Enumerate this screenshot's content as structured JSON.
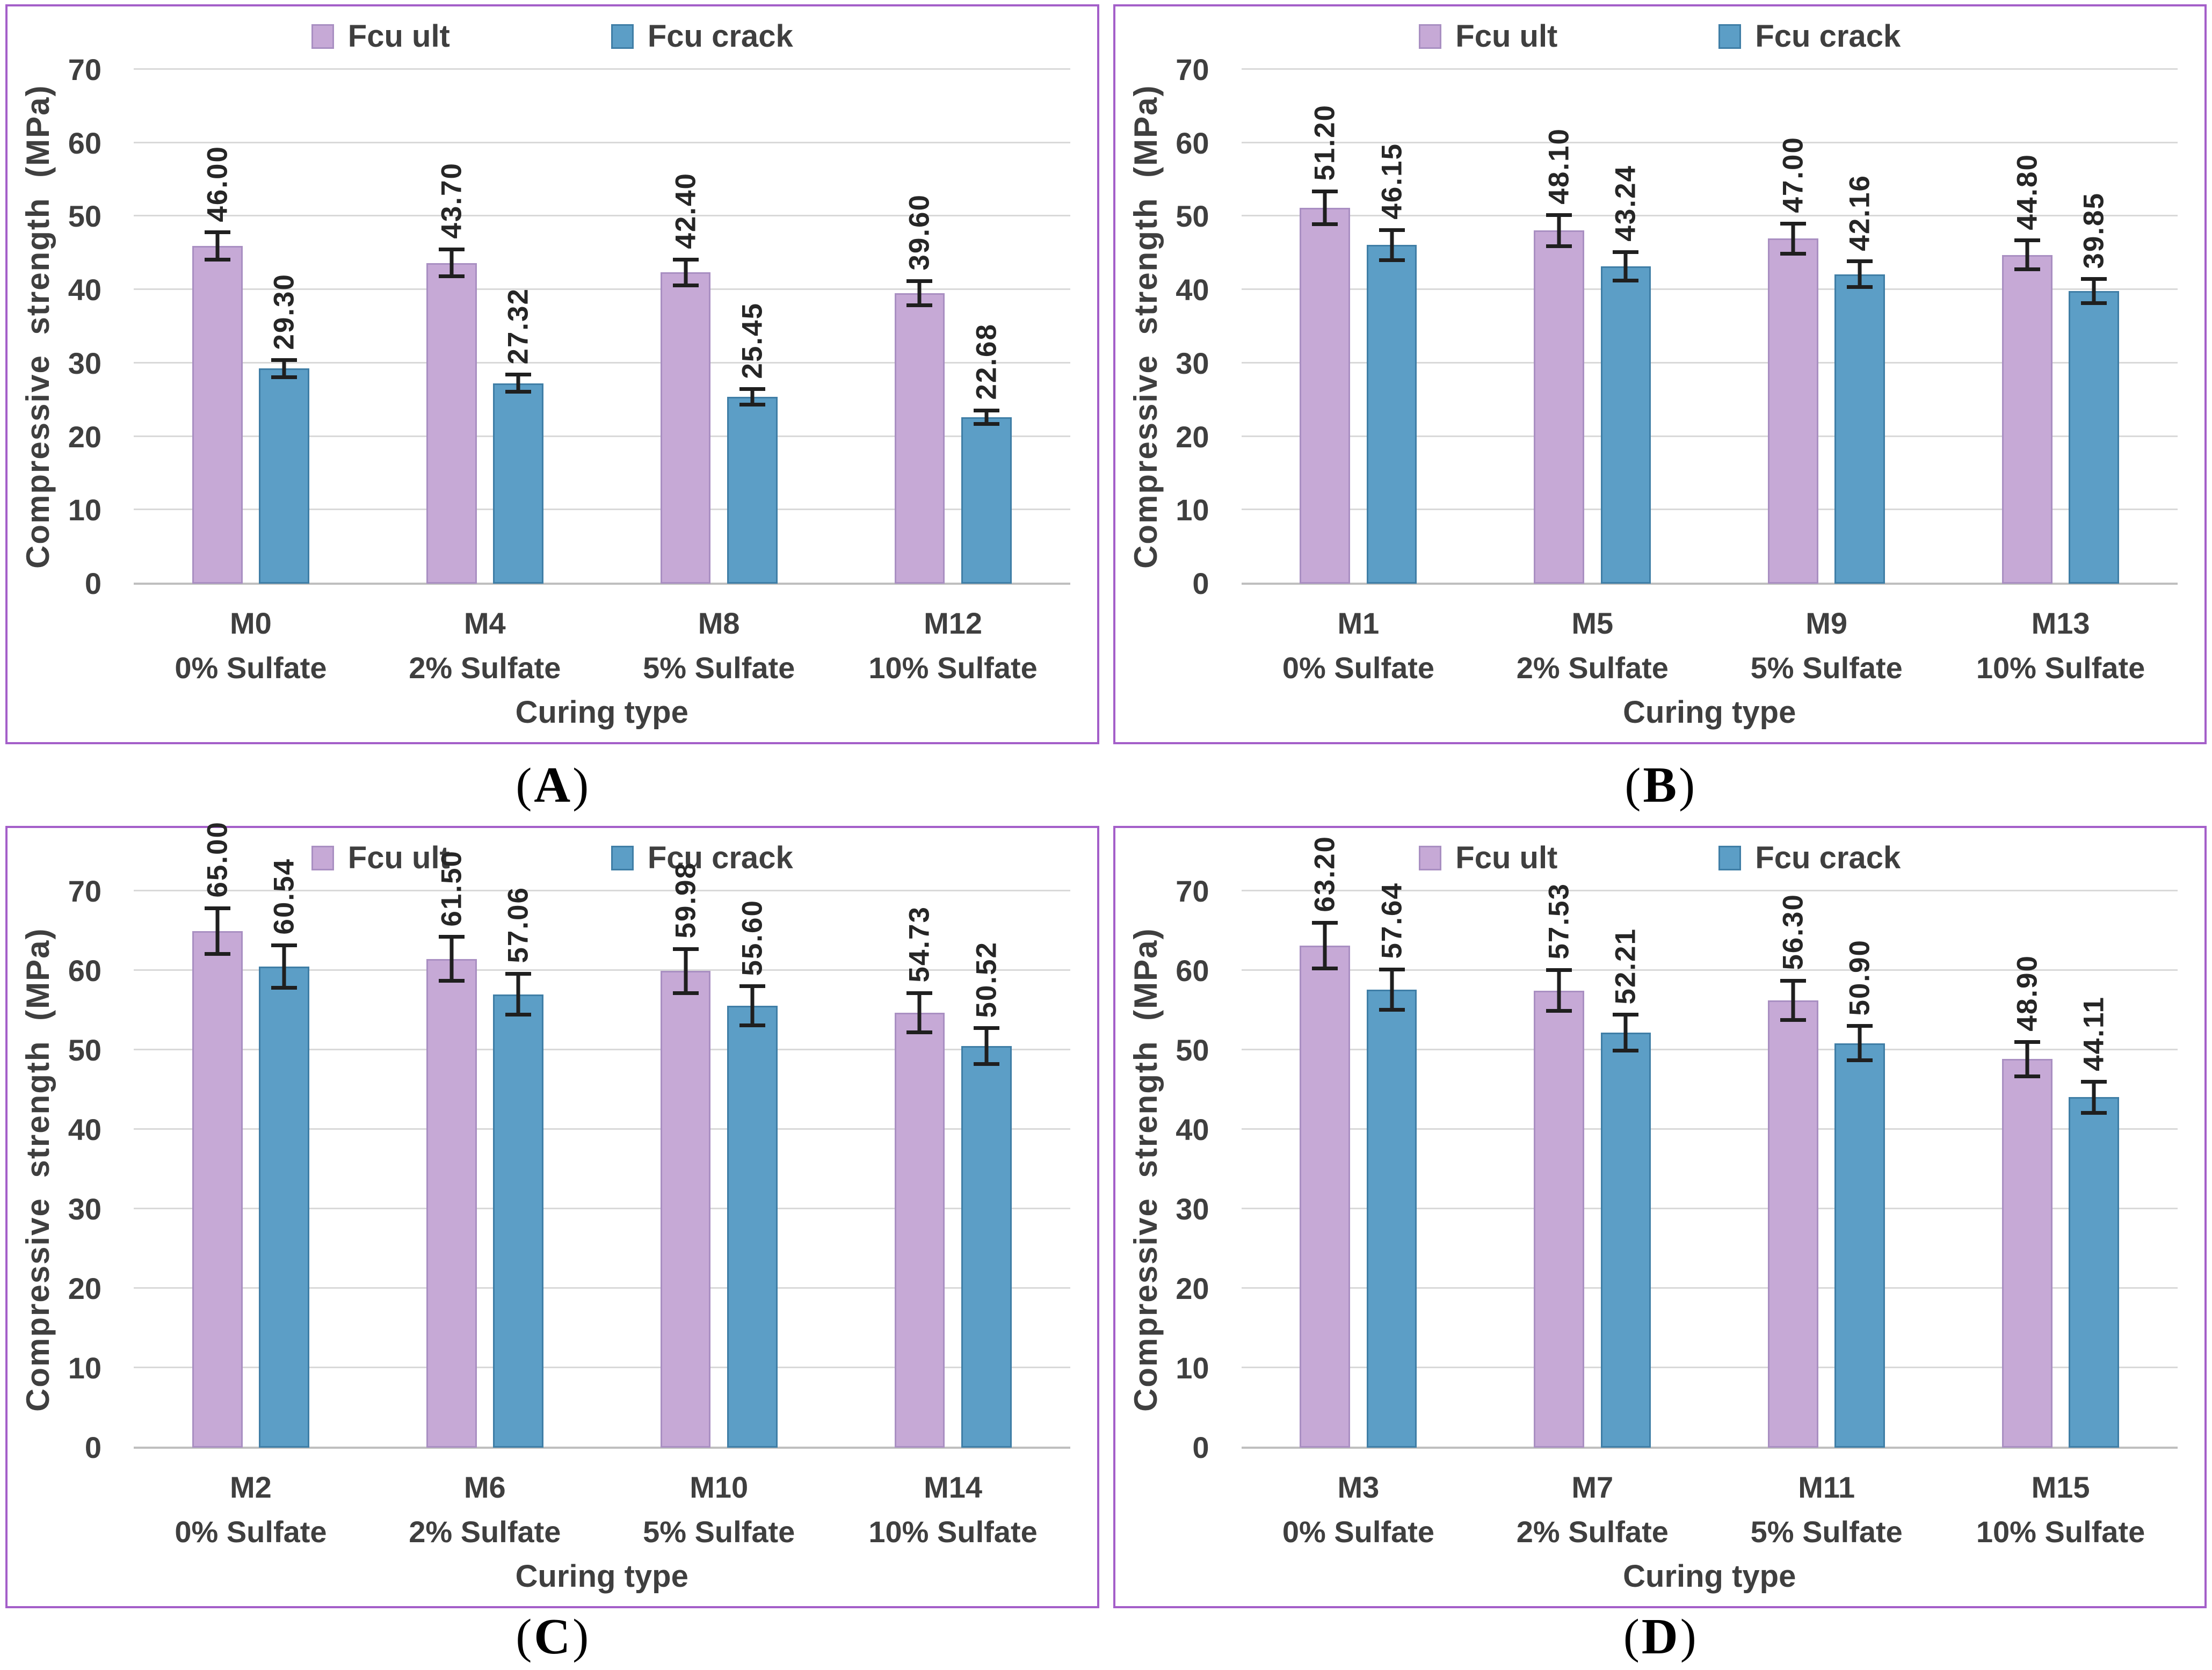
{
  "style": {
    "panel_border": "#a45fc9",
    "gridline": "#d9d9d9",
    "axis_line": "#bfbfbf",
    "text": "#3f3f3f",
    "data_label": "#262626",
    "error_bar": "#1f1f1f",
    "background": "#ffffff"
  },
  "captions": [
    {
      "open": "(",
      "letter": "A",
      "close": ")"
    },
    {
      "open": "(",
      "letter": "B",
      "close": ")"
    },
    {
      "open": "(",
      "letter": "C",
      "close": ")"
    },
    {
      "open": "(",
      "letter": "D",
      "close": ")"
    }
  ],
  "chart_data": [
    {
      "type": "bar",
      "panel": "A",
      "title": "",
      "xlabel": "Curing type",
      "ylabel": "Compressive strength (MPa)",
      "ylim": [
        0,
        70
      ],
      "ytick_step": 10,
      "grid": true,
      "legend_position": "top",
      "value_label_decimals": 2,
      "value_labels_rotated": true,
      "categories": [
        "M0",
        "M4",
        "M8",
        "M12"
      ],
      "category_sublabels": [
        "0% Sulfate",
        "2% Sulfate",
        "5% Sulfate",
        "10% Sulfate"
      ],
      "series": [
        {
          "name": "Fcu ult",
          "fill": "#c6a9d6",
          "stroke": "#a98fc2",
          "values": [
            46.0,
            43.7,
            42.4,
            39.6
          ],
          "errors": [
            2.1,
            2.1,
            2.0,
            1.9
          ]
        },
        {
          "name": "Fcu crack",
          "fill": "#5c9ec6",
          "stroke": "#3f7ea6",
          "values": [
            29.3,
            27.32,
            25.45,
            22.68
          ],
          "errors": [
            1.4,
            1.4,
            1.3,
            1.2
          ]
        }
      ]
    },
    {
      "type": "bar",
      "panel": "B",
      "title": "",
      "xlabel": "Curing type",
      "ylabel": "Compressive strength (MPa)",
      "ylim": [
        0,
        70
      ],
      "ytick_step": 10,
      "grid": true,
      "legend_position": "top",
      "value_label_decimals": 2,
      "value_labels_rotated": true,
      "categories": [
        "M1",
        "M5",
        "M9",
        "M13"
      ],
      "category_sublabels": [
        "0% Sulfate",
        "2% Sulfate",
        "5% Sulfate",
        "10% Sulfate"
      ],
      "series": [
        {
          "name": "Fcu ult",
          "fill": "#c6a9d6",
          "stroke": "#a98fc2",
          "values": [
            51.2,
            48.1,
            47.0,
            44.8
          ],
          "errors": [
            2.5,
            2.4,
            2.3,
            2.2
          ]
        },
        {
          "name": "Fcu crack",
          "fill": "#5c9ec6",
          "stroke": "#3f7ea6",
          "values": [
            46.15,
            43.24,
            42.16,
            39.85
          ],
          "errors": [
            2.3,
            2.2,
            2.0,
            1.9
          ]
        }
      ]
    },
    {
      "type": "bar",
      "panel": "C",
      "title": "",
      "xlabel": "Curing type",
      "ylabel": "Compressive strength (MPa)",
      "ylim": [
        0,
        70
      ],
      "ytick_step": 10,
      "grid": true,
      "legend_position": "top",
      "value_label_decimals": 2,
      "value_labels_rotated": true,
      "categories": [
        "M2",
        "M6",
        "M10",
        "M14"
      ],
      "category_sublabels": [
        "0% Sulfate",
        "2% Sulfate",
        "5% Sulfate",
        "10% Sulfate"
      ],
      "series": [
        {
          "name": "Fcu ult",
          "fill": "#c6a9d6",
          "stroke": "#a98fc2",
          "values": [
            65.0,
            61.5,
            59.98,
            54.73
          ],
          "errors": [
            3.1,
            3.0,
            3.0,
            2.7
          ]
        },
        {
          "name": "Fcu crack",
          "fill": "#5c9ec6",
          "stroke": "#3f7ea6",
          "values": [
            60.54,
            57.06,
            55.6,
            50.52
          ],
          "errors": [
            2.9,
            2.8,
            2.7,
            2.5
          ]
        }
      ]
    },
    {
      "type": "bar",
      "panel": "D",
      "title": "",
      "xlabel": "Curing type",
      "ylabel": "Compressive strength (MPa)",
      "ylim": [
        0,
        70
      ],
      "ytick_step": 10,
      "grid": true,
      "legend_position": "top",
      "value_label_decimals": 2,
      "value_labels_rotated": true,
      "categories": [
        "M3",
        "M7",
        "M11",
        "M15"
      ],
      "category_sublabels": [
        "0% Sulfate",
        "2% Sulfate",
        "5% Sulfate",
        "10% Sulfate"
      ],
      "series": [
        {
          "name": "Fcu ult",
          "fill": "#c6a9d6",
          "stroke": "#a98fc2",
          "values": [
            63.2,
            57.53,
            56.3,
            48.9
          ],
          "errors": [
            3.1,
            2.8,
            2.7,
            2.4
          ]
        },
        {
          "name": "Fcu crack",
          "fill": "#5c9ec6",
          "stroke": "#3f7ea6",
          "values": [
            57.64,
            52.21,
            50.9,
            44.11
          ],
          "errors": [
            2.8,
            2.5,
            2.4,
            2.2
          ]
        }
      ]
    }
  ]
}
